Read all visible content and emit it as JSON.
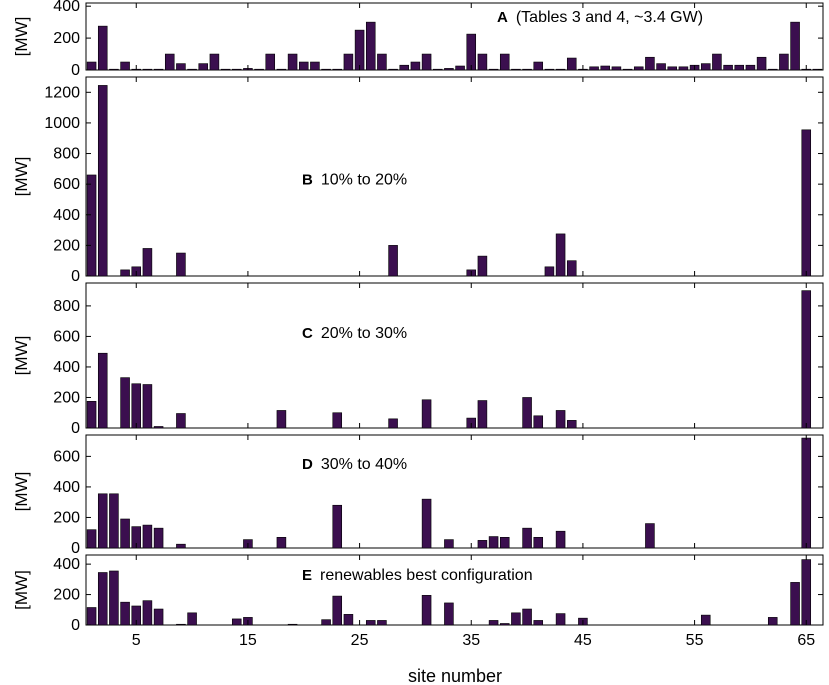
{
  "figure": {
    "xlabel": "site number",
    "x_ticks": [
      5,
      15,
      25,
      35,
      45,
      55,
      65
    ],
    "bar_color": "#3b0f4f",
    "axis_color": "#000000"
  },
  "chart_data": [
    {
      "type": "bar",
      "panel": "A",
      "label": "A",
      "title": "(Tables 3 and 4, ~3.4 GW)",
      "ylabel": "[MW]",
      "ylim": [
        0,
        420
      ],
      "yticks": [
        0,
        200,
        400
      ],
      "sites": [
        1,
        2,
        3,
        4,
        5,
        6,
        7,
        8,
        9,
        10,
        11,
        12,
        13,
        14,
        15,
        16,
        17,
        18,
        19,
        20,
        21,
        22,
        23,
        24,
        25,
        26,
        27,
        28,
        29,
        30,
        31,
        32,
        33,
        34,
        35,
        36,
        37,
        38,
        39,
        40,
        41,
        42,
        43,
        44,
        45,
        46,
        47,
        48,
        49,
        50,
        51,
        52,
        53,
        54,
        55,
        56,
        57,
        58,
        59,
        60,
        61,
        62,
        63,
        64,
        65,
        66
      ],
      "values": [
        50,
        275,
        5,
        50,
        5,
        5,
        5,
        100,
        40,
        5,
        40,
        100,
        5,
        5,
        10,
        5,
        100,
        5,
        100,
        50,
        50,
        5,
        5,
        100,
        250,
        300,
        100,
        5,
        30,
        50,
        100,
        5,
        10,
        25,
        225,
        100,
        5,
        100,
        5,
        5,
        50,
        5,
        5,
        75,
        5,
        20,
        25,
        20,
        5,
        20,
        80,
        40,
        20,
        20,
        30,
        40,
        100,
        30,
        30,
        30,
        80,
        5,
        100,
        300,
        5,
        5
      ]
    },
    {
      "type": "bar",
      "panel": "B",
      "label": "B",
      "title": "10% to 20%",
      "ylabel": "[MW]",
      "ylim": [
        0,
        1300
      ],
      "yticks": [
        0,
        200,
        400,
        600,
        800,
        1000,
        1200
      ],
      "sites": [
        1,
        2,
        3,
        4,
        5,
        6,
        7,
        8,
        9,
        10,
        11,
        12,
        13,
        14,
        15,
        16,
        17,
        18,
        19,
        20,
        21,
        22,
        23,
        24,
        25,
        26,
        27,
        28,
        29,
        30,
        31,
        32,
        33,
        34,
        35,
        36,
        37,
        38,
        39,
        40,
        41,
        42,
        43,
        44,
        45,
        46,
        47,
        48,
        49,
        50,
        51,
        52,
        53,
        54,
        55,
        56,
        57,
        58,
        59,
        60,
        61,
        62,
        63,
        64,
        65,
        66
      ],
      "values": [
        660,
        1245,
        0,
        40,
        60,
        180,
        0,
        0,
        150,
        0,
        0,
        0,
        0,
        0,
        0,
        0,
        0,
        0,
        0,
        0,
        0,
        0,
        0,
        0,
        0,
        0,
        0,
        200,
        0,
        0,
        0,
        0,
        0,
        0,
        40,
        130,
        0,
        0,
        0,
        0,
        0,
        60,
        275,
        100,
        0,
        0,
        0,
        0,
        0,
        0,
        0,
        0,
        0,
        0,
        0,
        0,
        0,
        0,
        0,
        0,
        0,
        0,
        0,
        0,
        955,
        0
      ]
    },
    {
      "type": "bar",
      "panel": "C",
      "label": "C",
      "title": "20% to 30%",
      "ylabel": "[MW]",
      "ylim": [
        0,
        950
      ],
      "yticks": [
        0,
        200,
        400,
        600,
        800
      ],
      "sites": [
        1,
        2,
        3,
        4,
        5,
        6,
        7,
        8,
        9,
        10,
        11,
        12,
        13,
        14,
        15,
        16,
        17,
        18,
        19,
        20,
        21,
        22,
        23,
        24,
        25,
        26,
        27,
        28,
        29,
        30,
        31,
        32,
        33,
        34,
        35,
        36,
        37,
        38,
        39,
        40,
        41,
        42,
        43,
        44,
        45,
        46,
        47,
        48,
        49,
        50,
        51,
        52,
        53,
        54,
        55,
        56,
        57,
        58,
        59,
        60,
        61,
        62,
        63,
        64,
        65,
        66
      ],
      "values": [
        175,
        490,
        0,
        330,
        290,
        285,
        10,
        0,
        95,
        0,
        0,
        0,
        0,
        0,
        0,
        0,
        0,
        115,
        0,
        0,
        0,
        0,
        100,
        0,
        0,
        0,
        0,
        60,
        0,
        0,
        185,
        0,
        0,
        0,
        65,
        180,
        0,
        0,
        0,
        200,
        80,
        0,
        115,
        50,
        0,
        0,
        0,
        0,
        0,
        0,
        0,
        0,
        0,
        0,
        0,
        0,
        0,
        0,
        0,
        0,
        0,
        0,
        0,
        0,
        900,
        0
      ]
    },
    {
      "type": "bar",
      "panel": "D",
      "label": "D",
      "title": "30% to 40%",
      "ylabel": "[MW]",
      "ylim": [
        0,
        740
      ],
      "yticks": [
        0,
        200,
        400,
        600
      ],
      "sites": [
        1,
        2,
        3,
        4,
        5,
        6,
        7,
        8,
        9,
        10,
        11,
        12,
        13,
        14,
        15,
        16,
        17,
        18,
        19,
        20,
        21,
        22,
        23,
        24,
        25,
        26,
        27,
        28,
        29,
        30,
        31,
        32,
        33,
        34,
        35,
        36,
        37,
        38,
        39,
        40,
        41,
        42,
        43,
        44,
        45,
        46,
        47,
        48,
        49,
        50,
        51,
        52,
        53,
        54,
        55,
        56,
        57,
        58,
        59,
        60,
        61,
        62,
        63,
        64,
        65,
        66
      ],
      "values": [
        120,
        355,
        355,
        190,
        140,
        150,
        130,
        0,
        25,
        0,
        0,
        0,
        0,
        0,
        55,
        0,
        0,
        70,
        0,
        0,
        0,
        0,
        280,
        0,
        0,
        0,
        0,
        0,
        0,
        0,
        320,
        0,
        55,
        0,
        0,
        50,
        75,
        70,
        0,
        130,
        70,
        0,
        110,
        0,
        0,
        0,
        0,
        0,
        0,
        0,
        160,
        0,
        0,
        0,
        0,
        0,
        0,
        0,
        0,
        0,
        0,
        0,
        0,
        0,
        720,
        0
      ]
    },
    {
      "type": "bar",
      "panel": "E",
      "label": "E",
      "title": "renewables best configuration",
      "ylabel": "[MW]",
      "ylim": [
        0,
        460
      ],
      "yticks": [
        0,
        200,
        400
      ],
      "sites": [
        1,
        2,
        3,
        4,
        5,
        6,
        7,
        8,
        9,
        10,
        11,
        12,
        13,
        14,
        15,
        16,
        17,
        18,
        19,
        20,
        21,
        22,
        23,
        24,
        25,
        26,
        27,
        28,
        29,
        30,
        31,
        32,
        33,
        34,
        35,
        36,
        37,
        38,
        39,
        40,
        41,
        42,
        43,
        44,
        45,
        46,
        47,
        48,
        49,
        50,
        51,
        52,
        53,
        54,
        55,
        56,
        57,
        58,
        59,
        60,
        61,
        62,
        63,
        64,
        65,
        66
      ],
      "values": [
        115,
        345,
        355,
        150,
        125,
        160,
        105,
        0,
        5,
        80,
        0,
        0,
        0,
        40,
        50,
        0,
        0,
        0,
        5,
        0,
        0,
        35,
        190,
        70,
        0,
        30,
        30,
        0,
        0,
        0,
        195,
        0,
        145,
        0,
        0,
        0,
        30,
        10,
        80,
        105,
        30,
        0,
        75,
        0,
        45,
        0,
        0,
        0,
        0,
        0,
        0,
        0,
        0,
        0,
        0,
        65,
        0,
        0,
        0,
        0,
        0,
        50,
        0,
        280,
        430,
        0
      ]
    }
  ]
}
